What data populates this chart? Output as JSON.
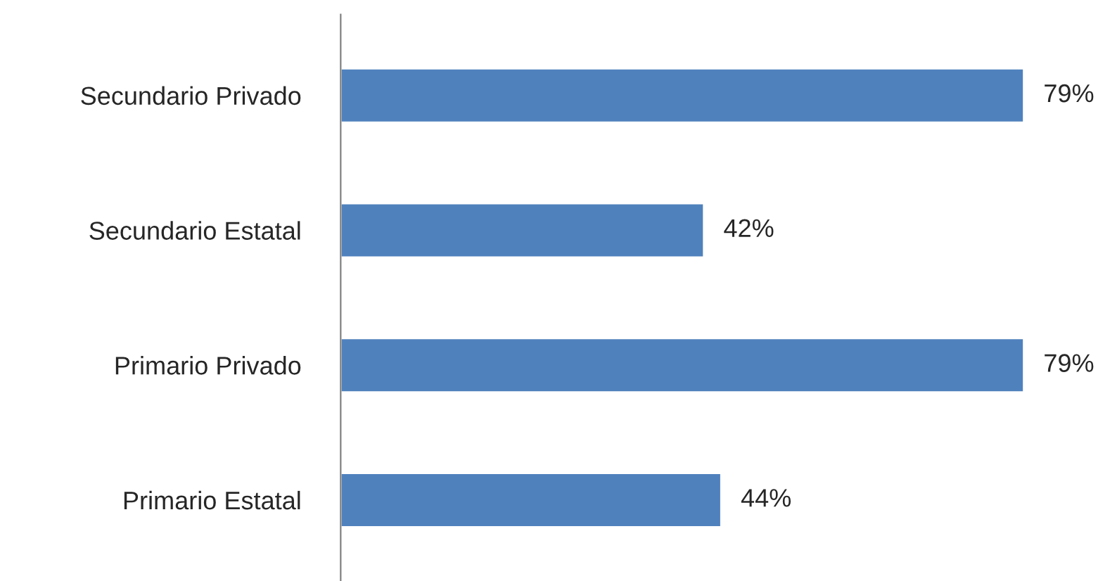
{
  "chart_data": {
    "type": "bar",
    "orientation": "horizontal",
    "categories": [
      "Secundario Privado",
      "Secundario Estatal",
      "Primario Privado",
      "Primario Estatal"
    ],
    "values": [
      79,
      42,
      79,
      44
    ],
    "value_labels": [
      "79%",
      "42%",
      "79%",
      "44%"
    ],
    "color": "#4f81bd",
    "grid": false,
    "legend": false
  }
}
